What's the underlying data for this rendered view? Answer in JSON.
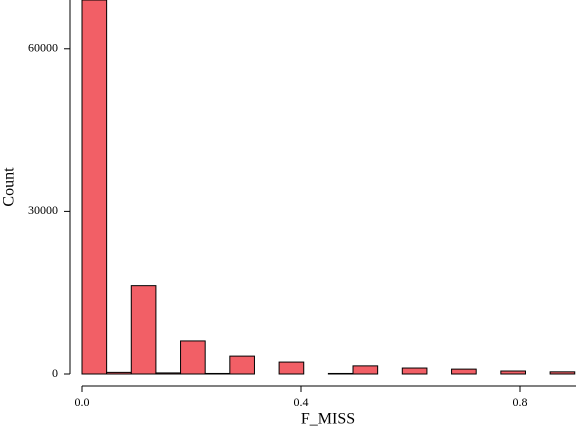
{
  "chart_data": {
    "type": "histogram",
    "xlabel": "F_MISS",
    "ylabel": "Count",
    "bins": [
      0,
      0.045,
      0.09,
      0.135,
      0.18,
      0.225,
      0.27,
      0.315,
      0.36,
      0.405,
      0.45,
      0.495,
      0.54,
      0.585,
      0.63,
      0.675,
      0.72,
      0.765,
      0.81,
      0.855,
      0.9
    ],
    "values": [
      69000,
      300,
      16300,
      200,
      6100,
      100,
      3300,
      0,
      2200,
      0,
      100,
      1500,
      0,
      1100,
      0,
      900,
      0,
      550,
      0,
      400
    ],
    "color": "#f25f66",
    "xlim": [
      0,
      0.9
    ],
    "ylim": [
      0,
      69000
    ],
    "xticks": [
      {
        "value": 0,
        "label": "0.0"
      },
      0.4,
      0.8
    ],
    "yticks": [
      0,
      30000,
      60000
    ]
  }
}
